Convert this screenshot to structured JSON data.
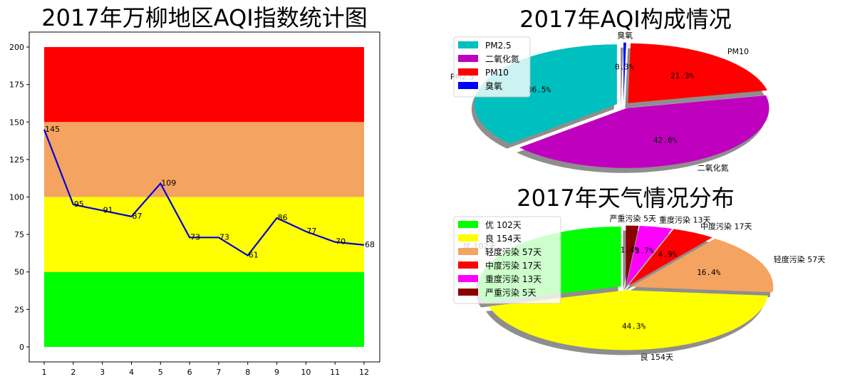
{
  "chart_data": [
    {
      "type": "line",
      "title": "2017年万柳地区AQI指数统计图",
      "x": [
        1,
        2,
        3,
        4,
        5,
        6,
        7,
        8,
        9,
        10,
        11,
        12
      ],
      "y": [
        145,
        95,
        91,
        87,
        109,
        73,
        73,
        61,
        86,
        77,
        70,
        68
      ],
      "ylim": [
        -10,
        210
      ],
      "yticks": [
        0,
        25,
        50,
        75,
        100,
        125,
        150,
        175,
        200
      ],
      "xticks": [
        1,
        2,
        3,
        4,
        5,
        6,
        7,
        8,
        9,
        10,
        11,
        12
      ],
      "line_color": "#0000dd",
      "bands": [
        {
          "from": 0,
          "to": 50,
          "color": "#00ff00"
        },
        {
          "from": 50,
          "to": 100,
          "color": "#ffff00"
        },
        {
          "from": 100,
          "to": 150,
          "color": "#f4a460"
        },
        {
          "from": 150,
          "to": 200,
          "color": "#ff0000"
        }
      ]
    },
    {
      "type": "pie",
      "title": "2017年AQI构成情况",
      "shadow": true,
      "legend": "upper-left",
      "slices": [
        {
          "label": "PM2.5",
          "value": 36.5,
          "pct": "36.5%",
          "color": "#00bfbf"
        },
        {
          "label": "二氧化氮",
          "value": 42.0,
          "pct": "42.0%",
          "color": "#bf00bf"
        },
        {
          "label": "PM10",
          "value": 21.3,
          "pct": "21.3%",
          "color": "#ff0000"
        },
        {
          "label": "臭氧",
          "value": 0.3,
          "pct": "0.3%",
          "color": "#0000ff"
        }
      ]
    },
    {
      "type": "pie",
      "title": "2017年天气情况分布",
      "shadow": true,
      "legend": "upper-left",
      "slices": [
        {
          "label": "优  102天",
          "value": 102,
          "pct": "",
          "color": "#00ff00"
        },
        {
          "label": "良  154天",
          "value": 154,
          "pct": "44.3%",
          "color": "#ffff00"
        },
        {
          "label": "轻度污染  57天",
          "value": 57,
          "pct": "16.4%",
          "color": "#f4a460"
        },
        {
          "label": "中度污染  17天",
          "value": 17,
          "pct": "4.9%",
          "color": "#ff0000"
        },
        {
          "label": "重度污染  13天",
          "value": 13,
          "pct": "3.7%",
          "color": "#ff00ff"
        },
        {
          "label": "严重污染  5天",
          "value": 5,
          "pct": "1.4%",
          "color": "#8b0000"
        }
      ]
    }
  ]
}
